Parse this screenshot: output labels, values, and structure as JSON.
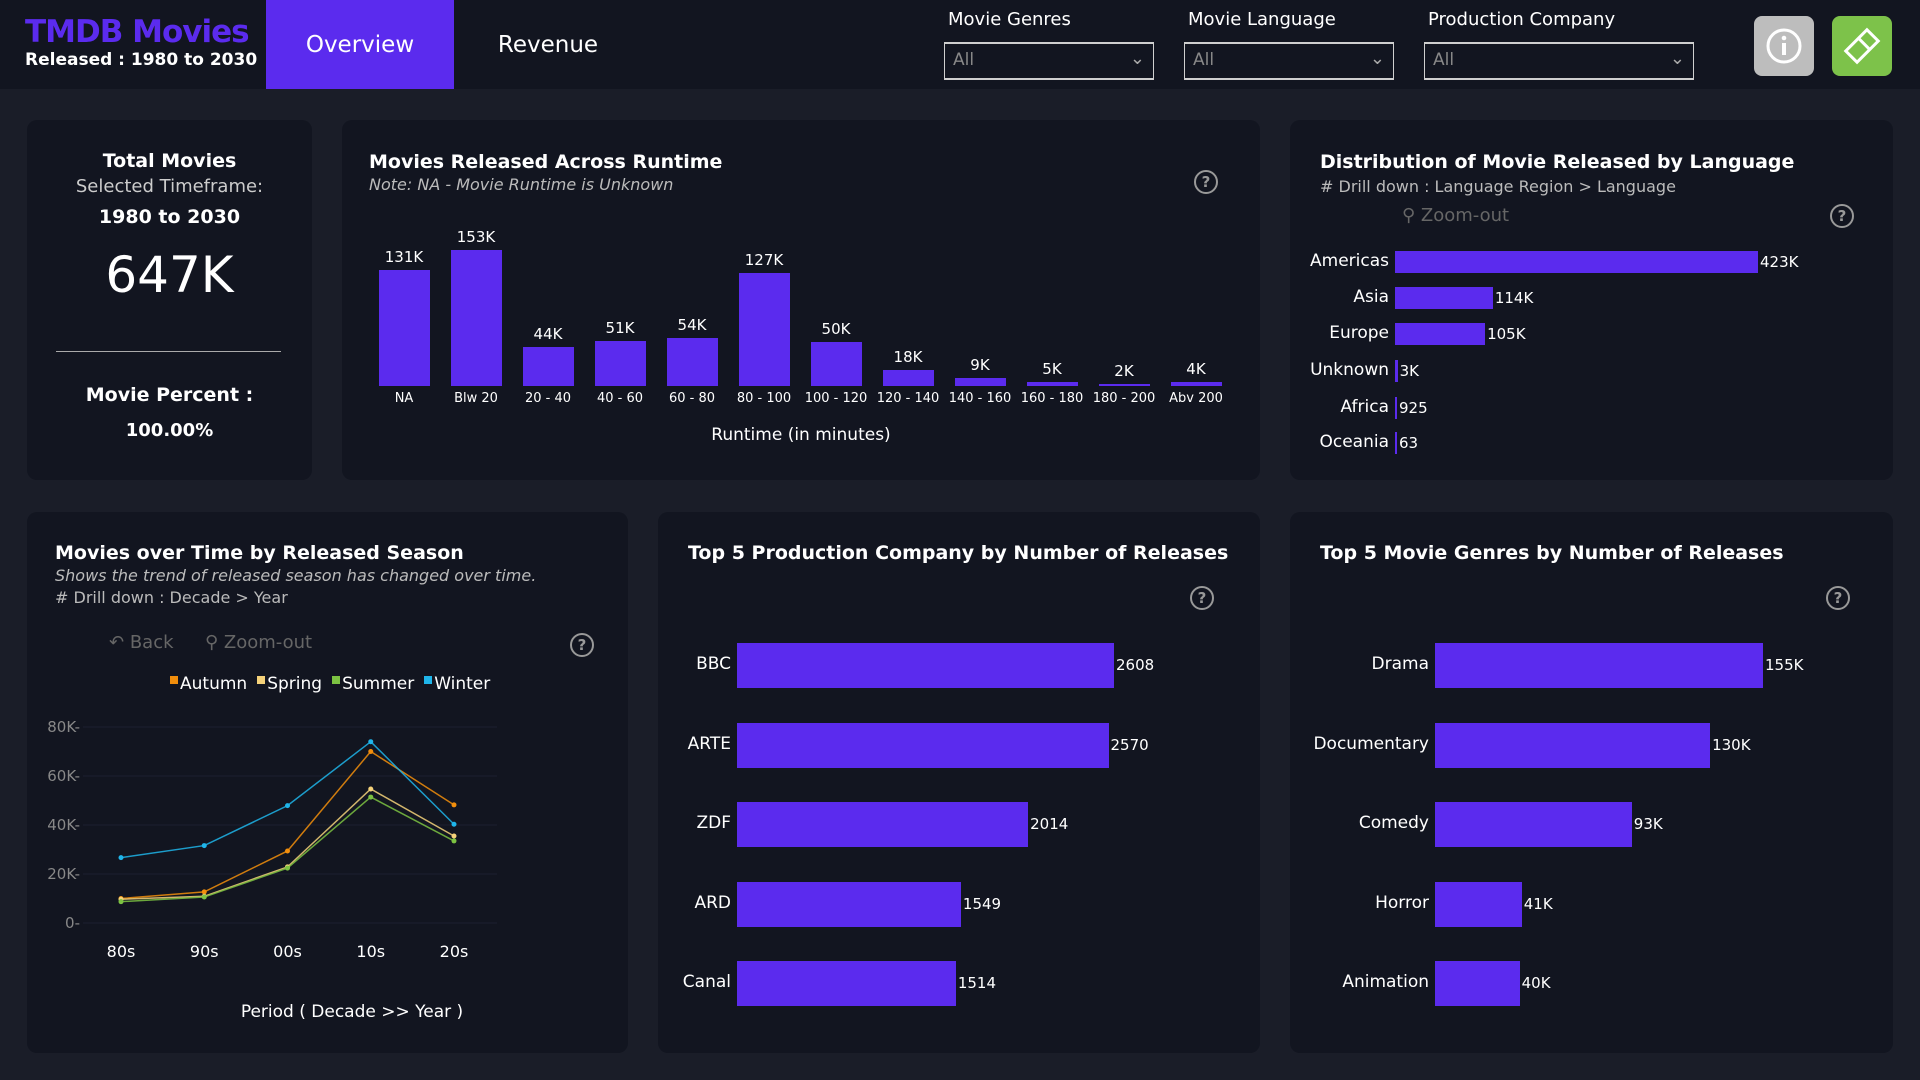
{
  "header": {
    "title": "TMDB Movies",
    "subtitle": "Released : 1980 to 2030",
    "tabs": [
      {
        "label": "Overview",
        "active": true
      },
      {
        "label": "Revenue",
        "active": false
      }
    ],
    "filters": [
      {
        "label": "Movie Genres",
        "value": "All"
      },
      {
        "label": "Movie Language",
        "value": "All"
      },
      {
        "label": "Production Company",
        "value": "All"
      }
    ],
    "buttons": [
      {
        "icon": "info-icon",
        "color": "#bdbdbd"
      },
      {
        "icon": "eraser-icon",
        "color": "#7dc24a"
      }
    ]
  },
  "colors": {
    "accent": "#5b2bee",
    "panel": "#121520",
    "background": "#1a1d28"
  },
  "kpi": {
    "title": "Total Movies",
    "timeframe_label": "Selected Timeframe:",
    "timeframe": "1980 to 2030",
    "value": "647K",
    "percent_label": "Movie Percent :",
    "percent": "100.00%"
  },
  "chart_data": [
    {
      "id": "runtime",
      "type": "bar",
      "title": "Movies Released Across Runtime",
      "subtitle": "Note: NA - Movie Runtime is Unknown",
      "xlabel": "Runtime (in minutes)",
      "categories": [
        "NA",
        "Blw 20",
        "20 - 40",
        "40 - 60",
        "60 - 80",
        "80 - 100",
        "100 - 120",
        "120 - 140",
        "140 - 160",
        "160 - 180",
        "180 - 200",
        "Abv 200"
      ],
      "values": [
        131,
        153,
        44,
        51,
        54,
        127,
        50,
        18,
        9,
        5,
        2,
        4
      ],
      "labels": [
        "131K",
        "153K",
        "44K",
        "51K",
        "54K",
        "127K",
        "50K",
        "18K",
        "9K",
        "5K",
        "2K",
        "4K"
      ]
    },
    {
      "id": "language",
      "type": "bar",
      "orientation": "horizontal",
      "title": "Distribution of Movie Released by Language",
      "subtitle": "# Drill down : Language Region > Language",
      "zoom_label": "Zoom-out",
      "categories": [
        "Americas",
        "Asia",
        "Europe",
        "Unknown",
        "Africa",
        "Oceania"
      ],
      "values": [
        423000,
        114000,
        105000,
        3000,
        925,
        63
      ],
      "labels": [
        "423K",
        "114K",
        "105K",
        "3K",
        "925",
        "63"
      ]
    },
    {
      "id": "season",
      "type": "line",
      "title": "Movies over Time by Released Season",
      "subtitle": "Shows the trend of released season has changed over time.",
      "drill": "# Drill down : Decade > Year",
      "back_label": "Back",
      "zoom_label": "Zoom-out",
      "xlabel": "Period ( Decade >> Year )",
      "categories": [
        "80s",
        "90s",
        "00s",
        "10s",
        "20s"
      ],
      "yticks": [
        "0",
        "20K",
        "40K",
        "60K",
        "80K"
      ],
      "ylim": [
        0,
        80000
      ],
      "series": [
        {
          "name": "Autumn",
          "color": "#f28e0c",
          "values": [
            10000,
            12700,
            29400,
            70000,
            48200
          ]
        },
        {
          "name": "Spring",
          "color": "#f5d27a",
          "values": [
            9700,
            10900,
            22900,
            54700,
            35500
          ]
        },
        {
          "name": "Summer",
          "color": "#7cc242",
          "values": [
            8700,
            10600,
            22400,
            51400,
            33500
          ]
        },
        {
          "name": "Winter",
          "color": "#1fb5ea",
          "values": [
            26700,
            31600,
            47900,
            74000,
            40300
          ]
        }
      ]
    },
    {
      "id": "company",
      "type": "bar",
      "orientation": "horizontal",
      "title": "Top 5 Production Company by Number of Releases",
      "categories": [
        "BBC",
        "ARTE",
        "ZDF",
        "ARD",
        "Canal"
      ],
      "values": [
        2608,
        2570,
        2014,
        1549,
        1514
      ],
      "labels": [
        "2608",
        "2570",
        "2014",
        "1549",
        "1514"
      ]
    },
    {
      "id": "genres",
      "type": "bar",
      "orientation": "horizontal",
      "title": "Top 5 Movie Genres by Number of Releases",
      "categories": [
        "Drama",
        "Documentary",
        "Comedy",
        "Horror",
        "Animation"
      ],
      "values": [
        155000,
        130000,
        93000,
        41000,
        40000
      ],
      "labels": [
        "155K",
        "130K",
        "93K",
        "41K",
        "40K"
      ]
    }
  ]
}
